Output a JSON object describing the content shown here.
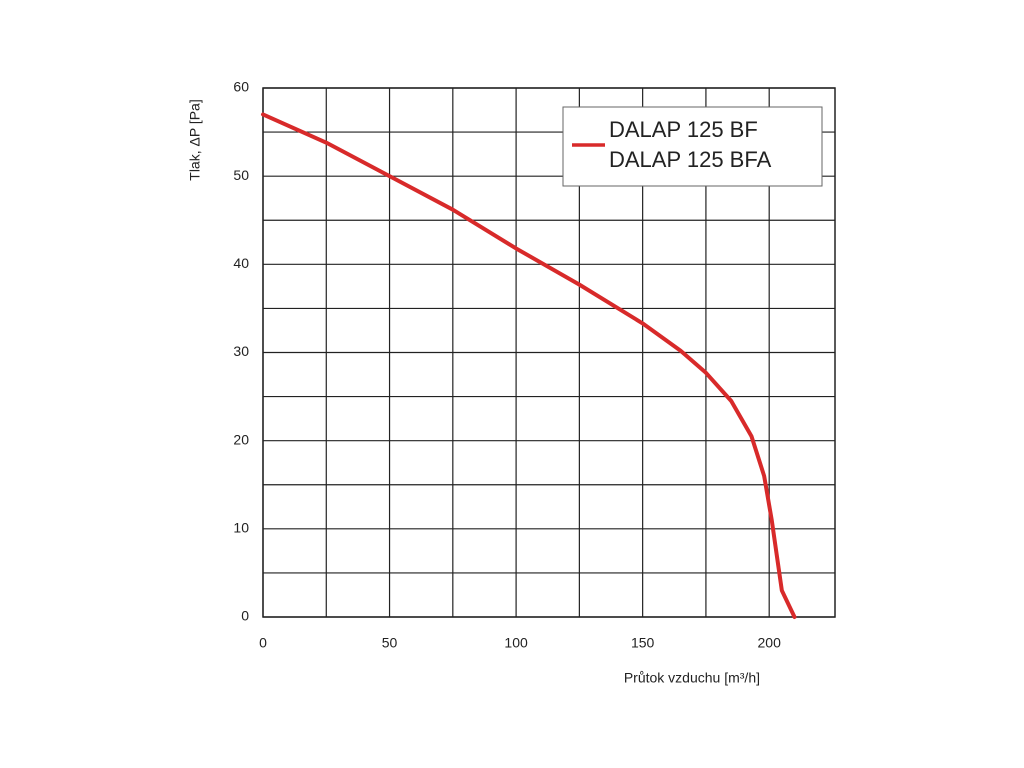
{
  "chart_data": {
    "type": "line",
    "x_label": "Průtok vzduchu [m³/h]",
    "y_label": "Tlak, ΔP [Pa]",
    "legend": [
      "DALAP 125 BF",
      "DALAP 125 BFA"
    ],
    "legend_position": "upper right",
    "grid": true,
    "xlim": [
      0,
      226
    ],
    "xticks": [
      0,
      50,
      100,
      150,
      200
    ],
    "xminorticks": [
      25,
      75,
      125,
      175
    ],
    "ylim": [
      0,
      60
    ],
    "yticks": [
      0,
      10,
      20,
      30,
      40,
      50,
      60
    ],
    "yminorticks": [
      5,
      15,
      25,
      35,
      45,
      55
    ],
    "series": [
      {
        "color": "#d82a2a",
        "x": [
          0,
          25,
          50,
          75,
          100,
          125,
          150,
          165,
          175,
          185,
          193,
          198,
          201,
          203,
          205,
          210
        ],
        "values": [
          57,
          53.8,
          50,
          46.2,
          41.8,
          37.7,
          33.3,
          30.2,
          27.7,
          24.5,
          20.5,
          16,
          11,
          7,
          3,
          0
        ]
      }
    ]
  }
}
